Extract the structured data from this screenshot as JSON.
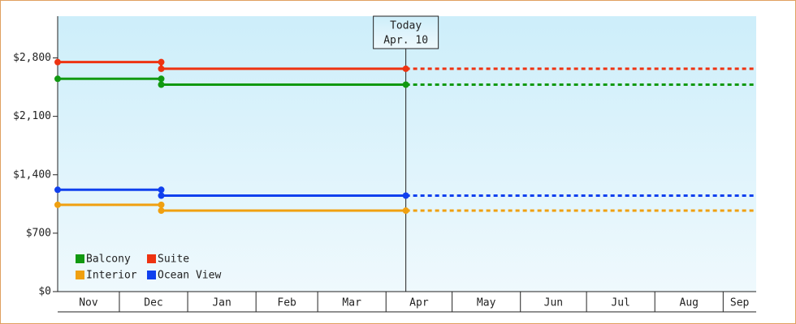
{
  "chart_data": {
    "type": "step-line",
    "x": [
      0,
      47,
      47,
      158
    ],
    "xlim": [
      0,
      317
    ],
    "xticks": [
      {
        "value": -2,
        "label": "Nov"
      },
      {
        "value": 28,
        "label": "Dec"
      },
      {
        "value": 59,
        "label": "Jan"
      },
      {
        "value": 90,
        "label": "Feb"
      },
      {
        "value": 118,
        "label": "Mar"
      },
      {
        "value": 149,
        "label": "Apr"
      },
      {
        "value": 179,
        "label": "May"
      },
      {
        "value": 210,
        "label": "Jun"
      },
      {
        "value": 240,
        "label": "Jul"
      },
      {
        "value": 271,
        "label": "Aug"
      },
      {
        "value": 302,
        "label": "Sep"
      }
    ],
    "ylim": [
      0,
      3300
    ],
    "yticks": [
      {
        "value": 0,
        "label": "$0"
      },
      {
        "value": 700,
        "label": "$700"
      },
      {
        "value": 1400,
        "label": "$1,400"
      },
      {
        "value": 2100,
        "label": "$2,100"
      },
      {
        "value": 2800,
        "label": "$2,800"
      }
    ],
    "today": {
      "x": 158,
      "label": "Today",
      "date": "Apr. 10"
    },
    "projection": "dotted",
    "series": [
      {
        "name": "Balcony",
        "color": "#119911",
        "values": [
          2550,
          2550,
          2480,
          2480
        ]
      },
      {
        "name": "Suite",
        "color": "#ee3311",
        "values": [
          2750,
          2750,
          2670,
          2670
        ]
      },
      {
        "name": "Interior",
        "color": "#f0a010",
        "values": [
          1040,
          1040,
          970,
          970
        ]
      },
      {
        "name": "Ocean View",
        "color": "#1040ee",
        "values": [
          1220,
          1220,
          1150,
          1150
        ]
      }
    ]
  }
}
